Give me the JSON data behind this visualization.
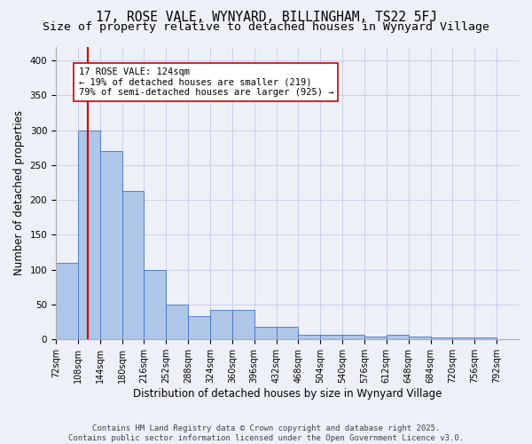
{
  "title": "17, ROSE VALE, WYNYARD, BILLINGHAM, TS22 5FJ",
  "subtitle": "Size of property relative to detached houses in Wynyard Village",
  "xlabel": "Distribution of detached houses by size in Wynyard Village",
  "ylabel": "Number of detached properties",
  "footer_line1": "Contains HM Land Registry data © Crown copyright and database right 2025.",
  "footer_line2": "Contains public sector information licensed under the Open Government Licence v3.0.",
  "bin_edges": [
    72,
    108,
    144,
    180,
    216,
    252,
    288,
    324,
    360,
    396,
    432,
    468,
    504,
    540,
    576,
    612,
    648,
    684,
    720,
    756,
    792
  ],
  "bar_heights": [
    110,
    300,
    270,
    213,
    100,
    50,
    33,
    42,
    42,
    18,
    18,
    7,
    7,
    7,
    4,
    7,
    4,
    3,
    3,
    3
  ],
  "bar_color": "#aec6e8",
  "bar_edge_color": "#4472c4",
  "grid_color": "#c8d0e8",
  "background_color": "#eef0f8",
  "red_line_x": 124,
  "red_line_color": "#cc0000",
  "annotation_text": "17 ROSE VALE: 124sqm\n← 19% of detached houses are smaller (219)\n79% of semi-detached houses are larger (925) →",
  "annotation_box_color": "#ffffff",
  "annotation_box_edge_color": "#cc0000",
  "ylim": [
    0,
    420
  ],
  "yticks": [
    0,
    50,
    100,
    150,
    200,
    250,
    300,
    350,
    400
  ],
  "title_fontsize": 10.5,
  "subtitle_fontsize": 9.5,
  "axis_label_fontsize": 8.5,
  "tick_fontsize": 7.5,
  "annotation_fontsize": 7.5,
  "footer_fontsize": 6.5
}
